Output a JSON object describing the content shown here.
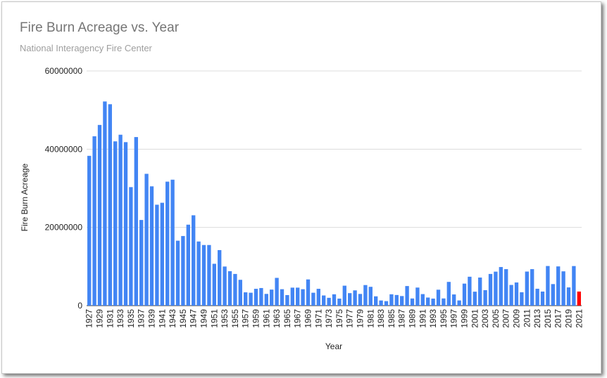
{
  "chart_data": {
    "type": "bar",
    "title": "Fire Burn Acreage vs. Year",
    "subtitle": "National Interagency Fire Center",
    "xlabel": "Year",
    "ylabel": "Fire Burn Acreage",
    "ylim": [
      0,
      60000000
    ],
    "yticks": [
      "0",
      "20000000",
      "40000000",
      "60000000"
    ],
    "grid": true,
    "bar_color": "#4285f4",
    "highlight_color": "#ff0000",
    "highlight_category": "2021",
    "categories": [
      "1927",
      "1928",
      "1929",
      "1930",
      "1931",
      "1932",
      "1933",
      "1934",
      "1935",
      "1936",
      "1937",
      "1938",
      "1939",
      "1940",
      "1941",
      "1942",
      "1943",
      "1944",
      "1945",
      "1946",
      "1947",
      "1948",
      "1949",
      "1950",
      "1951",
      "1952",
      "1953",
      "1954",
      "1955",
      "1956",
      "1957",
      "1958",
      "1959",
      "1960",
      "1961",
      "1962",
      "1963",
      "1964",
      "1965",
      "1966",
      "1967",
      "1968",
      "1969",
      "1970",
      "1971",
      "1972",
      "1973",
      "1974",
      "1975",
      "1976",
      "1977",
      "1978",
      "1979",
      "1980",
      "1981",
      "1982",
      "1983",
      "1984",
      "1985",
      "1986",
      "1987",
      "1988",
      "1989",
      "1990",
      "1991",
      "1992",
      "1993",
      "1994",
      "1995",
      "1996",
      "1997",
      "1998",
      "1999",
      "2000",
      "2001",
      "2002",
      "2003",
      "2004",
      "2005",
      "2006",
      "2007",
      "2008",
      "2009",
      "2010",
      "2011",
      "2012",
      "2013",
      "2014",
      "2015",
      "2016",
      "2017",
      "2018",
      "2019",
      "2020",
      "2021"
    ],
    "values": [
      38300000,
      43300000,
      46200000,
      52200000,
      51500000,
      42000000,
      43700000,
      41800000,
      30300000,
      43100000,
      21900000,
      33700000,
      30500000,
      25800000,
      26300000,
      31700000,
      32200000,
      16600000,
      17800000,
      20700000,
      23100000,
      16400000,
      15500000,
      15500000,
      10700000,
      14200000,
      10000000,
      8800000,
      8100000,
      6600000,
      3400000,
      3300000,
      4300000,
      4500000,
      3000000,
      4100000,
      7100000,
      4200000,
      2700000,
      4600000,
      4600000,
      4200000,
      6700000,
      3300000,
      4300000,
      2600000,
      2000000,
      2900000,
      1800000,
      5100000,
      3200000,
      3900000,
      2990000,
      5260000,
      4810000,
      2380000,
      1320000,
      1150000,
      2900000,
      2720000,
      2450000,
      5010000,
      1830000,
      4620000,
      2950000,
      2070000,
      1800000,
      4070000,
      1840000,
      6070000,
      2860000,
      1330000,
      5630000,
      7390000,
      3570000,
      7180000,
      3960000,
      8100000,
      8690000,
      9870000,
      9330000,
      5290000,
      5920000,
      3420000,
      8710000,
      9330000,
      4320000,
      3600000,
      10130000,
      5510000,
      10030000,
      8770000,
      4660000,
      10120000,
      3600000
    ]
  }
}
